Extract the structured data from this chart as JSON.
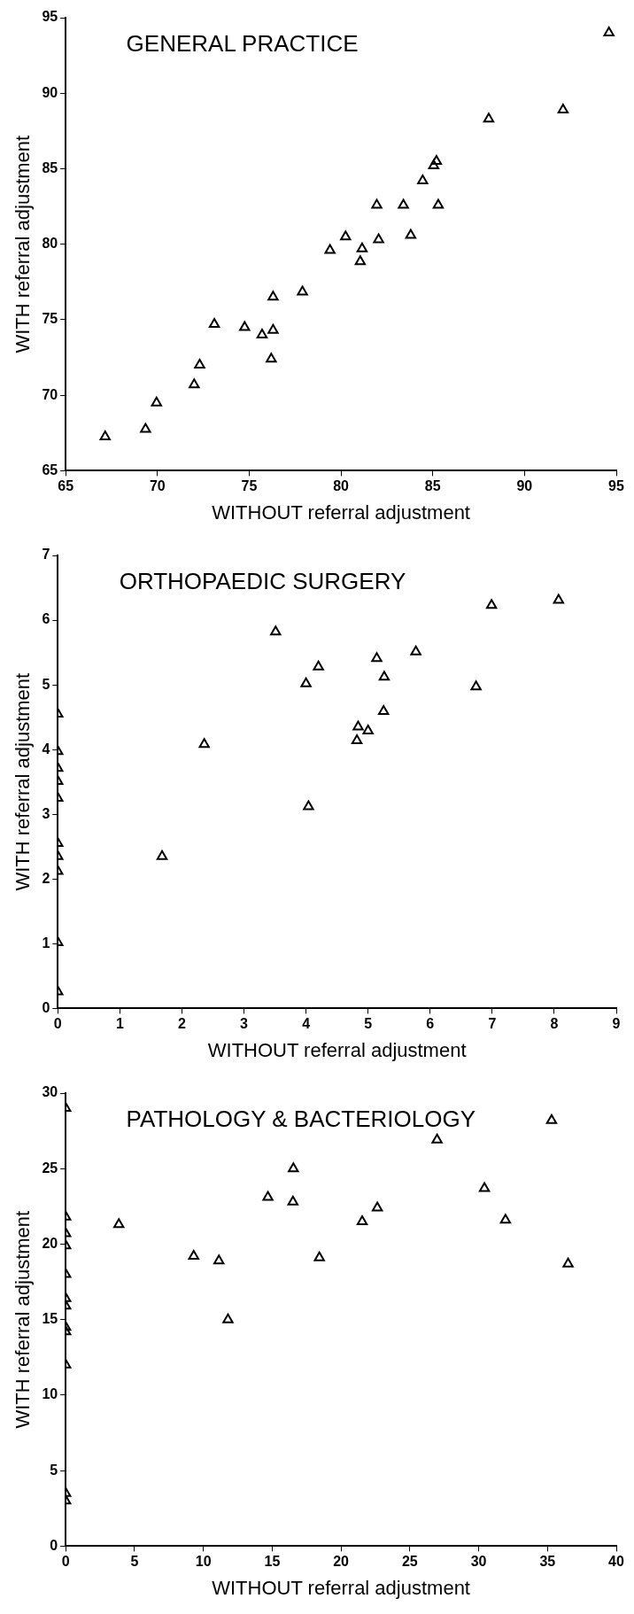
{
  "chart_data": [
    {
      "type": "scatter",
      "title": "GENERAL PRACTICE",
      "xlabel": "WITHOUT referral adjustment",
      "ylabel": "WITH referral adjustment",
      "color": "#000000",
      "marker": "triangle",
      "grid": false,
      "x": [
        94.6,
        92.1,
        88.05,
        85.2,
        85.05,
        84.45,
        85.3,
        83.4,
        81.95,
        83.8,
        82.05,
        80.25,
        81.15,
        81.05,
        79.4,
        77.9,
        76.3,
        76.3,
        76.2,
        75.7,
        74.75,
        73.1,
        72.3,
        72.0,
        69.95,
        69.35,
        67.15
      ],
      "values": [
        94.0,
        88.9,
        88.3,
        85.5,
        85.2,
        84.2,
        82.6,
        82.6,
        82.6,
        80.6,
        80.3,
        80.5,
        79.7,
        78.85,
        79.6,
        76.85,
        76.5,
        74.3,
        72.4,
        74.0,
        74.5,
        74.7,
        72.0,
        70.7,
        69.5,
        67.75,
        67.25
      ],
      "xlim": [
        65,
        95
      ],
      "xticks": [
        65,
        70,
        75,
        80,
        85,
        90,
        95
      ],
      "ylim": [
        65,
        95
      ],
      "yticks": [
        65,
        70,
        75,
        80,
        85,
        90,
        95
      ]
    },
    {
      "type": "scatter",
      "title": "ORTHOPAEDIC SURGERY",
      "xlabel": "WITHOUT referral adjustment",
      "ylabel": "WITH referral adjustment",
      "color": "#000000",
      "marker": "triangle",
      "grid": false,
      "x": [
        8.07,
        6.99,
        3.51,
        5.77,
        5.14,
        4.2,
        5.26,
        4.0,
        6.74,
        5.25,
        4.84,
        5.0,
        4.82,
        2.36,
        4.04,
        1.68,
        0,
        0,
        0,
        0,
        0,
        0,
        0,
        0,
        0,
        0
      ],
      "values": [
        6.31,
        6.23,
        5.82,
        5.51,
        5.41,
        5.28,
        5.12,
        5.02,
        4.97,
        4.59,
        4.35,
        4.29,
        4.14,
        4.08,
        3.12,
        2.35,
        4.55,
        3.97,
        3.71,
        3.51,
        3.25,
        2.55,
        2.35,
        2.12,
        1.02,
        0.26
      ],
      "xlim": [
        0,
        9
      ],
      "xticks": [
        0,
        1,
        2,
        3,
        4,
        5,
        6,
        7,
        8,
        9
      ],
      "ylim": [
        0,
        7
      ],
      "yticks": [
        0,
        1,
        2,
        3,
        4,
        5,
        6,
        7
      ]
    },
    {
      "type": "scatter",
      "title": "PATHOLOGY & BACTERIOLOGY",
      "xlabel": "WITHOUT referral adjustment",
      "ylabel": "WITH referral adjustment",
      "color": "#000000",
      "marker": "triangle",
      "grid": false,
      "x": [
        35.3,
        26.98,
        16.54,
        30.42,
        14.69,
        16.51,
        22.64,
        31.95,
        21.54,
        3.86,
        9.3,
        18.43,
        11.13,
        36.5,
        11.79,
        0,
        0,
        0,
        0,
        0,
        0,
        0,
        0,
        0,
        0,
        0,
        0
      ],
      "values": [
        28.2,
        26.9,
        25.0,
        23.7,
        23.1,
        22.8,
        22.4,
        21.6,
        21.5,
        21.3,
        19.2,
        19.1,
        18.9,
        18.7,
        15.0,
        29.0,
        21.8,
        20.7,
        19.9,
        18.0,
        16.4,
        15.9,
        14.5,
        14.2,
        12.0,
        3.5,
        3.0
      ],
      "xlim": [
        0,
        40
      ],
      "xticks": [
        0,
        5,
        10,
        15,
        20,
        25,
        30,
        35,
        40
      ],
      "ylim": [
        0,
        30
      ],
      "yticks": [
        0,
        5,
        10,
        15,
        20,
        25,
        30
      ]
    }
  ]
}
